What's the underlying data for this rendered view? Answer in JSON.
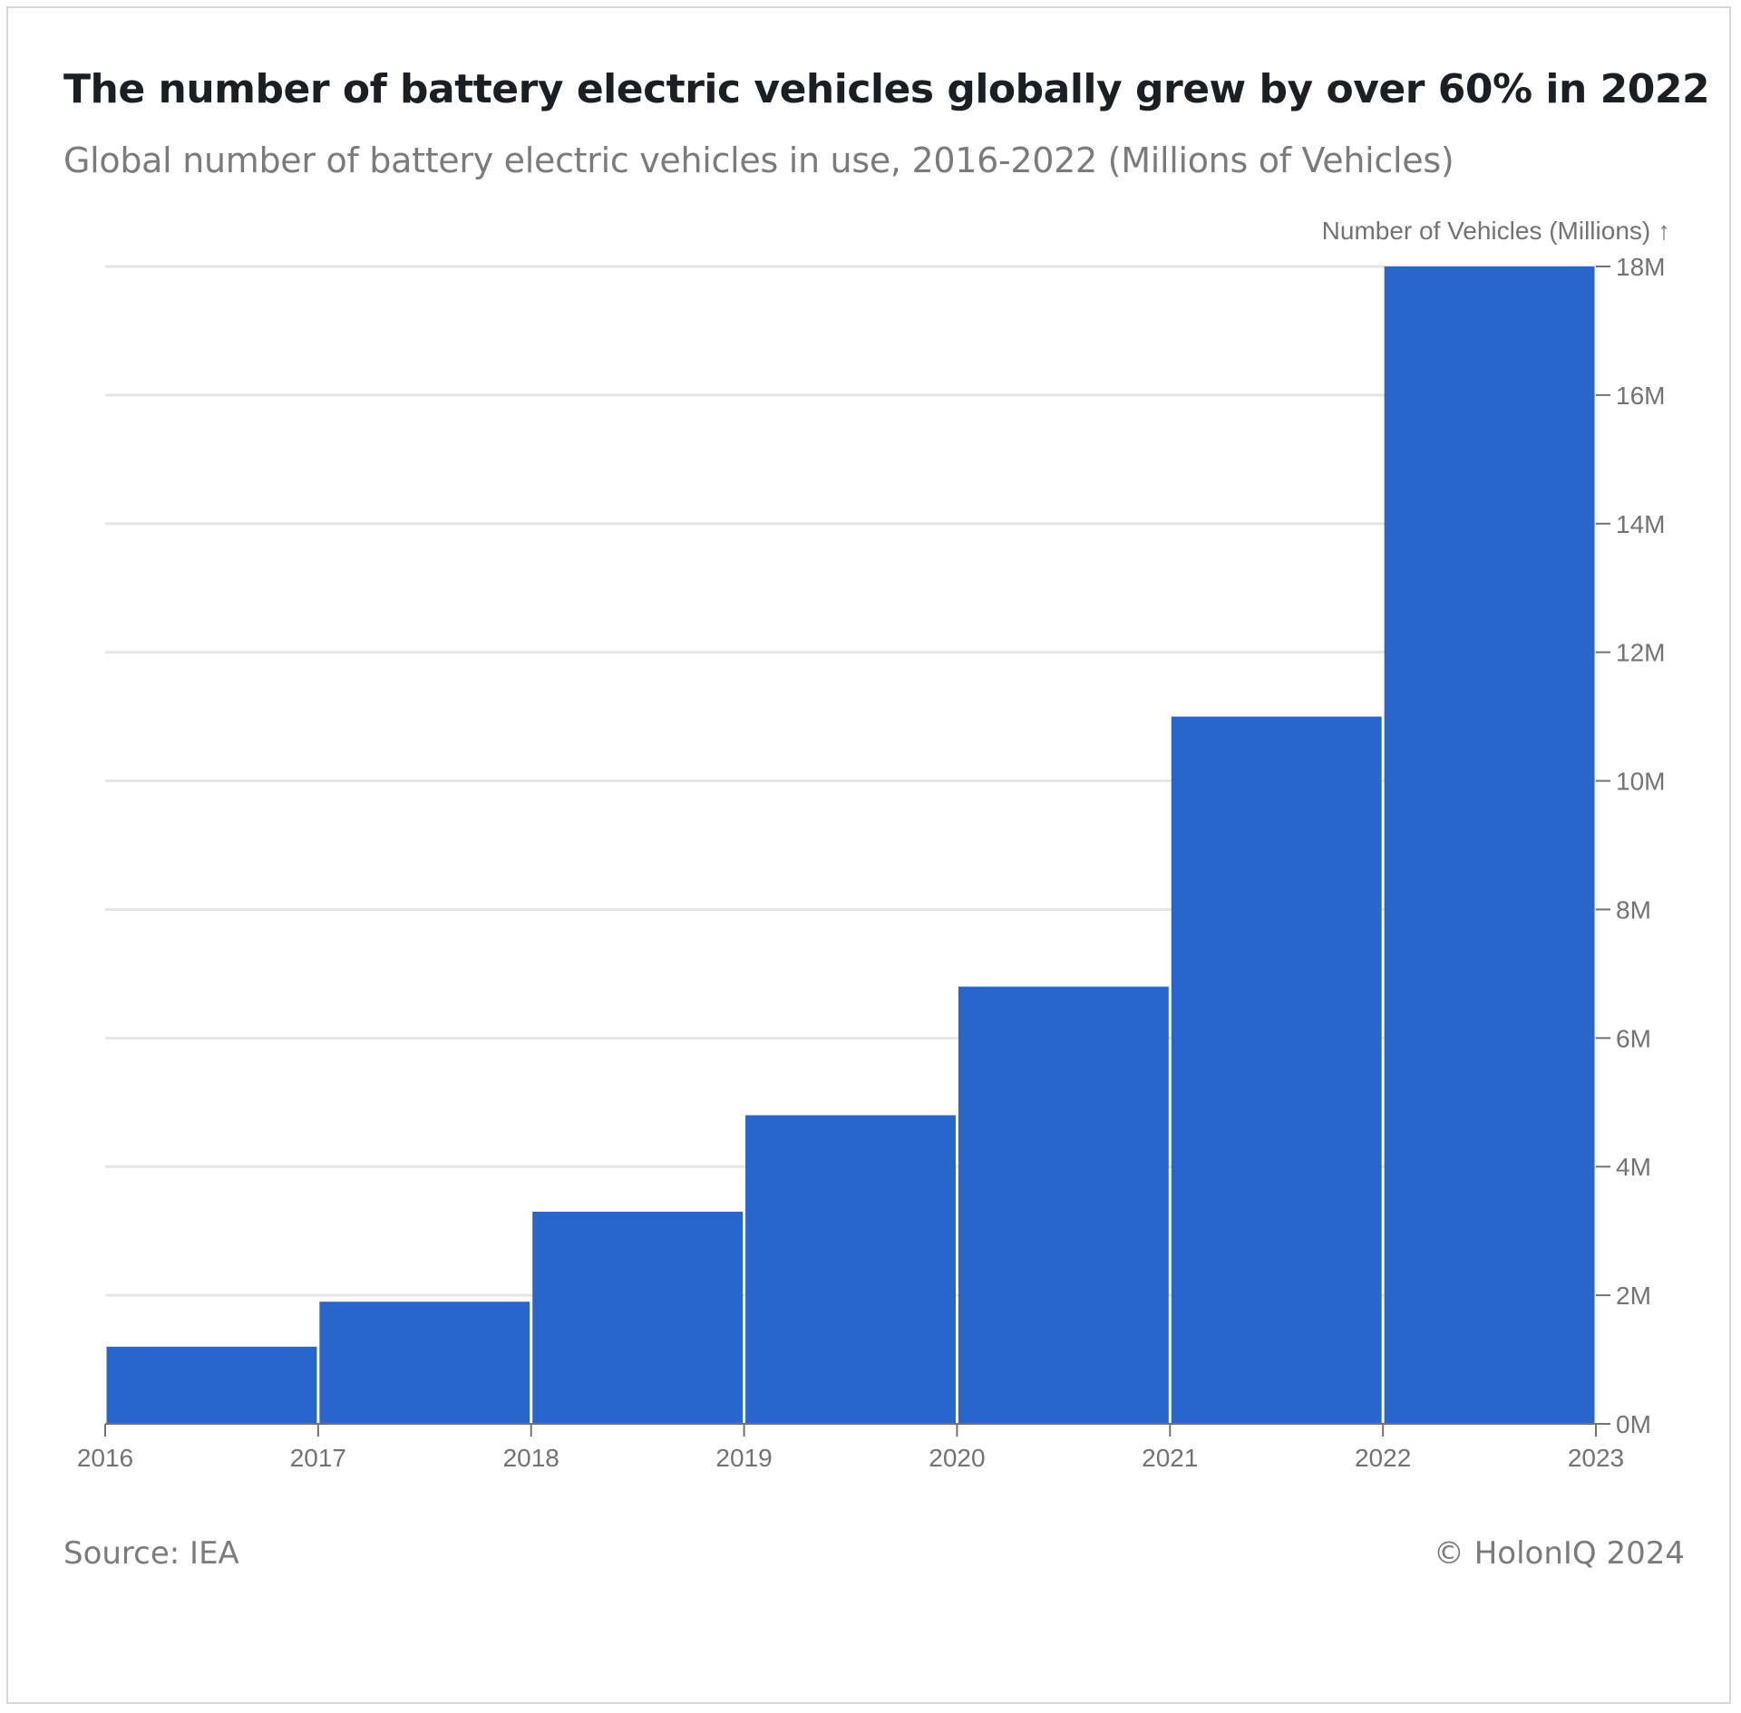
{
  "header": {
    "title": "The number of battery electric vehicles globally grew by over 60% in 2022",
    "subtitle": "Global number of battery electric vehicles in use, 2016-2022 (Millions of Vehicles)"
  },
  "footer": {
    "source": "Source: IEA",
    "copyright": "© HolonIQ 2024"
  },
  "chart_data": {
    "type": "bar",
    "title": "The number of battery electric vehicles globally grew by over 60% in 2022",
    "subtitle": "Global number of battery electric vehicles in use, 2016-2022 (Millions of Vehicles)",
    "ylabel": "Number of Vehicles (Millions) ↑",
    "xlabel": "",
    "bins": [
      {
        "start": 2016,
        "end": 2017,
        "value": 1.2
      },
      {
        "start": 2017,
        "end": 2018,
        "value": 1.9
      },
      {
        "start": 2018,
        "end": 2019,
        "value": 3.3
      },
      {
        "start": 2019,
        "end": 2020,
        "value": 4.8
      },
      {
        "start": 2020,
        "end": 2021,
        "value": 6.8
      },
      {
        "start": 2021,
        "end": 2022,
        "value": 11.0
      },
      {
        "start": 2022,
        "end": 2023,
        "value": 18.0
      }
    ],
    "x_ticks": [
      "2016",
      "2017",
      "2018",
      "2019",
      "2020",
      "2021",
      "2022",
      "2023"
    ],
    "y_ticks": [
      {
        "value": 0,
        "label": "0M"
      },
      {
        "value": 2,
        "label": "2M"
      },
      {
        "value": 4,
        "label": "4M"
      },
      {
        "value": 6,
        "label": "6M"
      },
      {
        "value": 8,
        "label": "8M"
      },
      {
        "value": 10,
        "label": "10M"
      },
      {
        "value": 12,
        "label": "12M"
      },
      {
        "value": 14,
        "label": "14M"
      },
      {
        "value": 16,
        "label": "16M"
      },
      {
        "value": 18,
        "label": "18M"
      }
    ],
    "xlim": [
      2016,
      2023
    ],
    "ylim": [
      0,
      18
    ],
    "y_axis_side": "right",
    "grid": "horizontal",
    "colors": {
      "bar": "#2966cc",
      "grid": "#e6e6e6",
      "axis": "#737373"
    }
  }
}
